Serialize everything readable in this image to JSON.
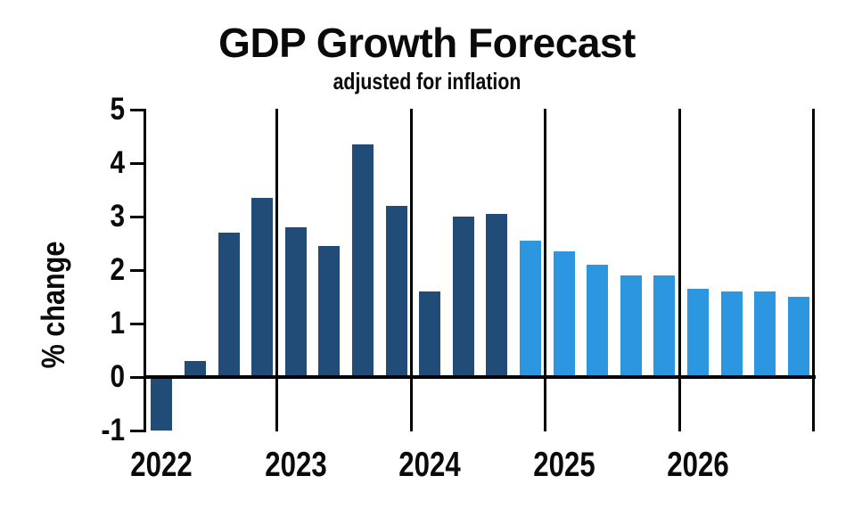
{
  "chart_data": {
    "type": "bar",
    "title": "GDP Growth Forecast",
    "subtitle": "adjusted for inflation",
    "ylabel": "% change",
    "xlabel": "",
    "ylim": [
      -1,
      5
    ],
    "yticks": [
      5,
      4,
      3,
      2,
      1,
      0,
      -1
    ],
    "grid": "vertical lines at year boundaries",
    "legend": "none",
    "bar_period": "quarterly",
    "colors": {
      "actual": "#214c78",
      "forecast": "#2c96e1",
      "axis": "#000000",
      "text": "#0a0a0a",
      "background": "#ffffff"
    },
    "years": [
      {
        "label": "2022",
        "values": [
          -1.0,
          0.3,
          2.7,
          3.35
        ],
        "kinds": [
          "actual",
          "actual",
          "actual",
          "actual"
        ]
      },
      {
        "label": "2023",
        "values": [
          2.8,
          2.45,
          4.35,
          3.2
        ],
        "kinds": [
          "actual",
          "actual",
          "actual",
          "actual"
        ]
      },
      {
        "label": "2024",
        "values": [
          1.6,
          3.0,
          3.05,
          2.55
        ],
        "kinds": [
          "actual",
          "actual",
          "actual",
          "forecast"
        ]
      },
      {
        "label": "2025",
        "values": [
          2.35,
          2.1,
          1.9,
          1.9
        ],
        "kinds": [
          "forecast",
          "forecast",
          "forecast",
          "forecast"
        ]
      },
      {
        "label": "2026",
        "values": [
          1.65,
          1.6,
          1.6,
          1.5
        ],
        "kinds": [
          "forecast",
          "forecast",
          "forecast",
          "forecast"
        ]
      }
    ]
  }
}
